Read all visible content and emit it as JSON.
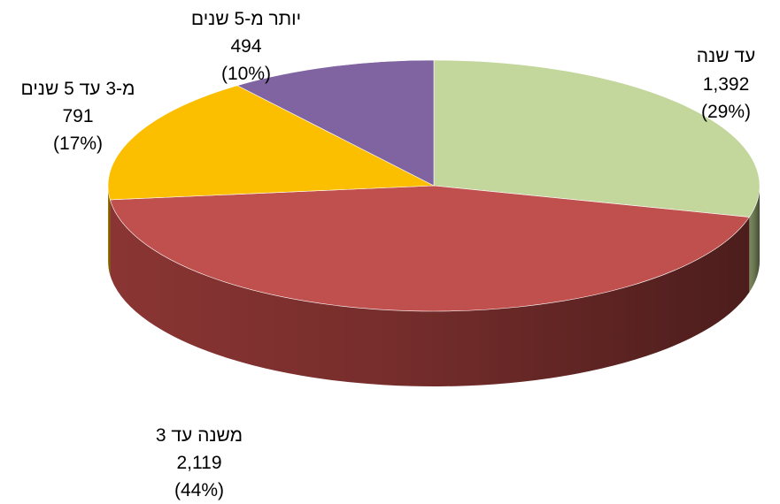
{
  "chart_data": {
    "type": "pie",
    "style": "3d",
    "title": "",
    "slices": [
      {
        "label": "עד שנה",
        "value": 1392,
        "value_text": "1,392",
        "percent_text": "(29%)",
        "color": "#c3d69b",
        "side_color": "#7d8a5f"
      },
      {
        "label": "משנה עד 3",
        "value": 2119,
        "value_text": "2,119",
        "percent_text": "(44%)",
        "color": "#c0504d",
        "side_color": "#8a3533"
      },
      {
        "label": "מ-3 עד 5 שנים",
        "value": 791,
        "value_text": "791",
        "percent_text": "(17%)",
        "color": "#fbbf00",
        "side_color": "#a67f00"
      },
      {
        "label": "יותר מ-5 שנים",
        "value": 494,
        "value_text": "494",
        "percent_text": "(10%)",
        "color": "#8064a2",
        "side_color": "#54426b"
      }
    ]
  }
}
